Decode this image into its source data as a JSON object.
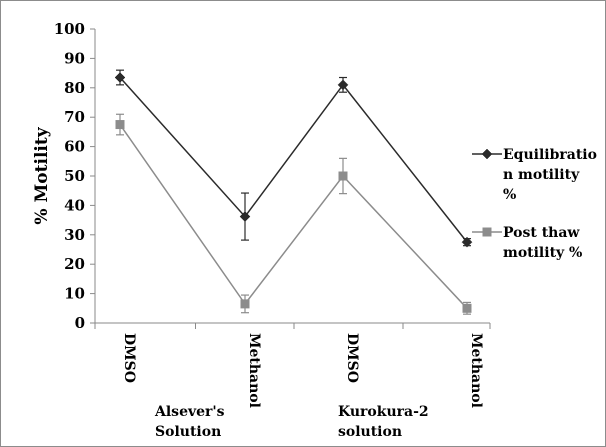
{
  "chart_data": {
    "type": "line",
    "categories": [
      "DMSO",
      "Methanol",
      "DMSO",
      "Methanol"
    ],
    "groups": [
      {
        "label_lines": [
          "Alsever's",
          "Solution"
        ]
      },
      {
        "label_lines": [
          "Kurokura-2",
          "solution"
        ]
      }
    ],
    "ylabel": "% Motility",
    "ylim": [
      0,
      100
    ],
    "yticks": [
      0,
      10,
      20,
      30,
      40,
      50,
      60,
      70,
      80,
      90,
      100
    ],
    "legend_position": "right",
    "grid": false,
    "series": [
      {
        "name_lines": [
          "Equilibratio",
          "n motility",
          "%"
        ],
        "marker": "diamond",
        "color": "#2b2b2b",
        "values": [
          83.5,
          36.2,
          81.0,
          27.5
        ],
        "errors": [
          2.5,
          8.0,
          2.5,
          1.2
        ]
      },
      {
        "name_lines": [
          "Post thaw",
          "motility %"
        ],
        "marker": "square",
        "color": "#8c8c8c",
        "values": [
          67.5,
          6.5,
          50.0,
          5.0
        ],
        "errors": [
          3.5,
          3.0,
          6.0,
          2.0
        ]
      }
    ]
  }
}
